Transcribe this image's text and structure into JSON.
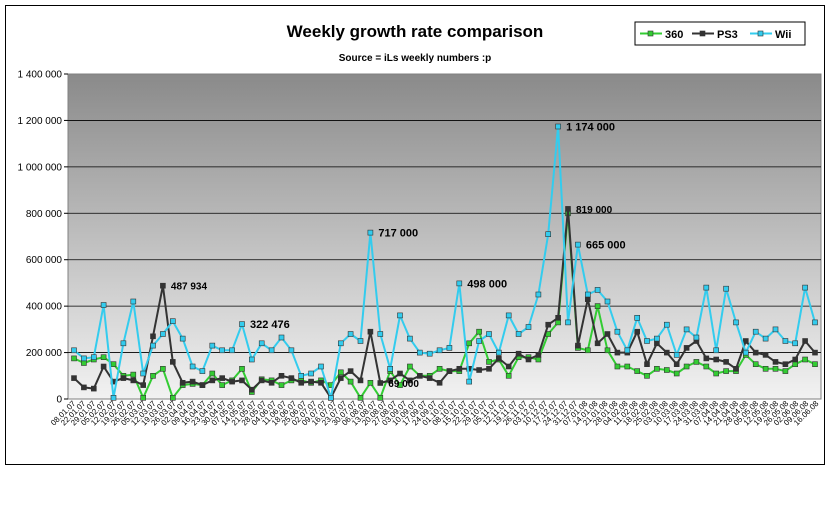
{
  "chart_data": {
    "type": "line",
    "title": "Weekly growth rate comparison",
    "subtitle": "Source = iLs weekly numbers :p",
    "xlabel": "",
    "ylabel": "",
    "ylim": [
      0,
      1400000
    ],
    "yticks": [
      0,
      200000,
      400000,
      600000,
      800000,
      1000000,
      1200000,
      1400000
    ],
    "ytick_labels": [
      "0",
      "200 000",
      "400 000",
      "600 000",
      "800 000",
      "1 000 000",
      "1 200 000",
      "1 400 000"
    ],
    "grid": true,
    "legend_position": "top-right",
    "x": [
      "08.01.07",
      "15.01.07",
      "22.01.07",
      "29.01.07",
      "05.02.07",
      "12.02.07",
      "19.02.07",
      "26.02.07",
      "05.03.07",
      "12.03.07",
      "19.03.07",
      "26.03.07",
      "02.04.07",
      "09.04.07",
      "16.04.07",
      "23.04.07",
      "30.04.07",
      "07.05.07",
      "14.05.07",
      "21.05.07",
      "28.05.07",
      "04.06.07",
      "11.06.07",
      "18.06.07",
      "25.06.07",
      "02.07.07",
      "09.07.07",
      "16.07.07",
      "23.07.07",
      "30.07.07",
      "06.08.07",
      "13.08.07",
      "20.08.07",
      "27.08.07",
      "03.09.07",
      "10.09.07",
      "17.09.07",
      "24.09.07",
      "01.10.07",
      "08.10.07",
      "15.10.07",
      "22.10.07",
      "29.10.07",
      "05.11.07",
      "12.11.07",
      "19.11.07",
      "26.11.07",
      "03.12.07",
      "10.12.07",
      "17.12.07",
      "24.12.07",
      "31.12.07",
      "07.01.08",
      "14.01.08",
      "21.01.08",
      "28.01.08",
      "04.02.08",
      "11.02.08",
      "18.02.08",
      "25.02.08",
      "03.03.08",
      "10.03.08",
      "17.03.08",
      "24.03.08",
      "31.03.08",
      "07.04.08",
      "14.04.08",
      "21.04.08",
      "28.04.08",
      "05.05.08",
      "12.05.08",
      "19.05.08",
      "26.05.08",
      "02.06.08",
      "09.06.08",
      "16.06.08"
    ],
    "x_tick_labels": [
      "08.01.07",
      "22.01.07",
      "29.01.07",
      "05.02.07",
      "12.02.07",
      "19.02.07",
      "26.02.07",
      "05.03.07",
      "12.03.07",
      "19.03.07",
      "26.03.07",
      "02.04.07",
      "09.04.07",
      "16.04.07",
      "23.04.07",
      "30.04.07",
      "07.05.07",
      "14.05.07",
      "21.05.07",
      "28.05.07",
      "04.06.07",
      "11.06.07",
      "18.06.07",
      "25.06.07",
      "02.07.07",
      "09.07.07",
      "16.07.07",
      "23.07.07",
      "30.07.07",
      "06.08.07",
      "13.08.07",
      "20.08.07",
      "27.08.07",
      "03.09.07",
      "10.09.07",
      "17.09.07",
      "24.09.07",
      "01.10.07",
      "08.10.07",
      "15.10.07",
      "22.10.07",
      "29.10.07",
      "05.11.07",
      "12.11.07",
      "19.11.07",
      "26.11.07",
      "03.12.07",
      "10.12.07",
      "17.12.07",
      "24.12.07",
      "31.12.07",
      "07.01.08",
      "14.01.08",
      "21.01.08",
      "28.01.08",
      "04.02.08",
      "11.02.08",
      "18.02.08",
      "25.02.08",
      "03.03.08",
      "10.03.08",
      "17.03.08",
      "24.03.08",
      "31.03.08",
      "07.04.08",
      "14.04.08",
      "21.04.08",
      "28.04.08",
      "05.05.08",
      "12.05.08",
      "19.05.08",
      "26.05.08",
      "02.06.08",
      "09.06.08",
      "16.06.08"
    ],
    "series": [
      {
        "name": "360",
        "color": "#33cc33",
        "marker_fill": "#33cc33",
        "values": [
          175000,
          155000,
          170000,
          180000,
          150000,
          100000,
          105000,
          5000,
          100000,
          130000,
          5000,
          60000,
          65000,
          60000,
          110000,
          60000,
          80000,
          130000,
          30000,
          85000,
          80000,
          60000,
          80000,
          80000,
          70000,
          80000,
          60000,
          115000,
          75000,
          5000,
          70000,
          5000,
          120000,
          60000,
          140000,
          100000,
          100000,
          130000,
          120000,
          120000,
          240000,
          290000,
          160000,
          170000,
          100000,
          180000,
          180000,
          170000,
          280000,
          330000,
          800000,
          220000,
          210000,
          400000,
          210000,
          140000,
          140000,
          120000,
          100000,
          130000,
          125000,
          110000,
          140000,
          160000,
          140000,
          110000,
          120000,
          120000,
          190000,
          150000,
          130000,
          130000,
          120000,
          150000,
          170000,
          150000
        ]
      },
      {
        "name": "PS3",
        "color": "#333333",
        "marker_fill": "#333333",
        "values": [
          90000,
          50000,
          45000,
          140000,
          75000,
          90000,
          80000,
          60000,
          270000,
          487934,
          160000,
          70000,
          75000,
          60000,
          80000,
          90000,
          75000,
          80000,
          40000,
          80000,
          70000,
          100000,
          90000,
          70000,
          75000,
          70000,
          5000,
          90000,
          120000,
          80000,
          290000,
          69000,
          80000,
          110000,
          80000,
          100000,
          90000,
          70000,
          120000,
          130000,
          130000,
          125000,
          130000,
          175000,
          140000,
          195000,
          170000,
          190000,
          320000,
          350000,
          819000,
          230000,
          430000,
          240000,
          280000,
          200000,
          200000,
          290000,
          150000,
          240000,
          200000,
          150000,
          220000,
          250000,
          175000,
          170000,
          160000,
          130000,
          250000,
          200000,
          190000,
          160000,
          150000,
          170000,
          250000,
          200000
        ]
      },
      {
        "name": "Wii",
        "color": "#33ccee",
        "marker_fill": "#33ccee",
        "values": [
          210000,
          175000,
          180000,
          405000,
          5000,
          240000,
          420000,
          110000,
          230000,
          280000,
          335000,
          260000,
          140000,
          120000,
          230000,
          210000,
          210000,
          322476,
          170000,
          240000,
          210000,
          265000,
          210000,
          100000,
          110000,
          140000,
          5000,
          240000,
          280000,
          250000,
          717000,
          280000,
          130000,
          360000,
          260000,
          200000,
          195000,
          210000,
          220000,
          498000,
          75000,
          250000,
          280000,
          200000,
          360000,
          280000,
          310000,
          450000,
          710000,
          1174000,
          330000,
          665000,
          450000,
          470000,
          420000,
          290000,
          210000,
          350000,
          250000,
          260000,
          320000,
          190000,
          300000,
          265000,
          480000,
          210000,
          475000,
          330000,
          200000,
          290000,
          260000,
          300000,
          250000,
          240000,
          480000,
          330000
        ]
      }
    ],
    "annotations": [
      {
        "text": "487 934",
        "series": "PS3",
        "index": 9
      },
      {
        "text": "322 476",
        "series": "Wii",
        "index": 17
      },
      {
        "text": "717 000",
        "series": "Wii",
        "index": 30
      },
      {
        "text": "69 000",
        "series": "PS3",
        "index": 31
      },
      {
        "text": "498 000",
        "series": "Wii",
        "index": 39
      },
      {
        "text": "1 174 000",
        "series": "Wii",
        "index": 49
      },
      {
        "text": "819 000",
        "series": "PS3",
        "index": 50
      },
      {
        "text": "665 000",
        "series": "Wii",
        "index": 51
      }
    ]
  }
}
